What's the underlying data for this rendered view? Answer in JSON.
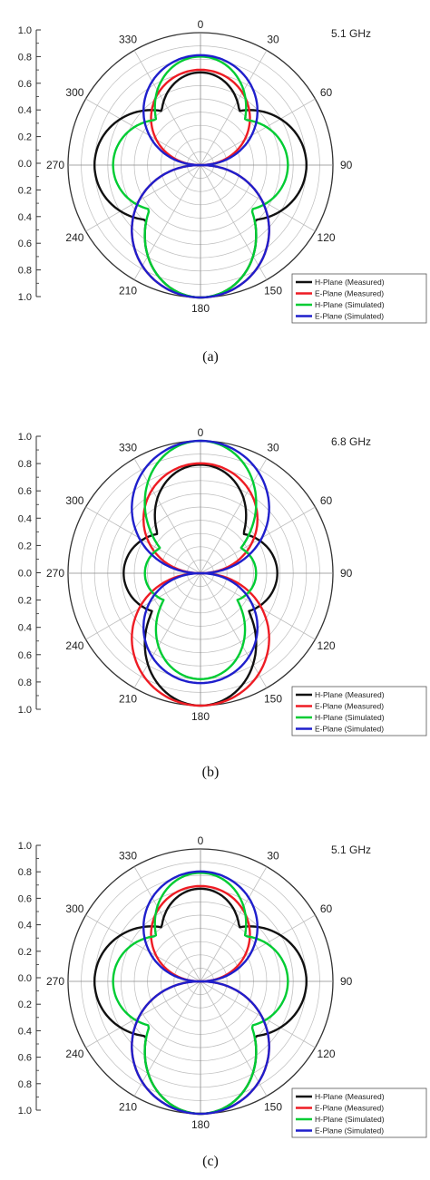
{
  "chart_data": [
    {
      "type": "polar",
      "panel": "(a)",
      "frequency_label": "5.1 GHz",
      "radial_ticks": [
        "1.0",
        "0.8",
        "0.6",
        "0.4",
        "0.2",
        "0.0",
        "0.2",
        "0.4",
        "0.6",
        "0.8",
        "1.0"
      ],
      "angle_labels": [
        "0",
        "30",
        "60",
        "90",
        "120",
        "150",
        "180",
        "210",
        "240",
        "270",
        "300",
        "330"
      ],
      "rlim": [
        0,
        1
      ],
      "grid": true,
      "legend_position": "bottom-right",
      "series": [
        {
          "name": "H-Plane (Measured)",
          "color": "#111111",
          "pattern": "h",
          "front": 0.7,
          "back": 1.0,
          "side": 0.8
        },
        {
          "name": "E-Plane (Measured)",
          "color": "#ee1c24",
          "pattern": "e",
          "front": 0.72,
          "back": 1.0
        },
        {
          "name": "H-Plane (Simulated)",
          "color": "#00cc33",
          "pattern": "h",
          "front": 0.82,
          "back": 1.0,
          "side": 0.66
        },
        {
          "name": "E-Plane (Simulated)",
          "color": "#1f1fcc",
          "pattern": "e",
          "front": 0.83,
          "back": 1.0
        }
      ]
    },
    {
      "type": "polar",
      "panel": "(b)",
      "frequency_label": "6.8 GHz",
      "radial_ticks": [
        "1.0",
        "0.8",
        "0.6",
        "0.4",
        "0.2",
        "0.0",
        "0.2",
        "0.4",
        "0.6",
        "0.8",
        "1.0"
      ],
      "angle_labels": [
        "0",
        "30",
        "60",
        "90",
        "120",
        "150",
        "180",
        "210",
        "240",
        "270",
        "300",
        "330"
      ],
      "rlim": [
        0,
        1
      ],
      "grid": true,
      "legend_position": "bottom-right",
      "series": [
        {
          "name": "H-Plane (Measured)",
          "color": "#111111",
          "pattern": "h",
          "front": 0.82,
          "back": 1.0,
          "side": 0.58
        },
        {
          "name": "E-Plane (Measured)",
          "color": "#ee1c24",
          "pattern": "e",
          "front": 0.83,
          "back": 1.0
        },
        {
          "name": "H-Plane (Simulated)",
          "color": "#00cc33",
          "pattern": "h",
          "front": 1.0,
          "back": 0.8,
          "side": 0.42
        },
        {
          "name": "E-Plane (Simulated)",
          "color": "#1f1fcc",
          "pattern": "e",
          "front": 1.0,
          "back": 0.83
        }
      ]
    },
    {
      "type": "polar",
      "panel": "(c)",
      "frequency_label": "5.1 GHz",
      "radial_ticks": [
        "1.0",
        "0.8",
        "0.6",
        "0.4",
        "0.2",
        "0.0",
        "0.2",
        "0.4",
        "0.6",
        "0.8",
        "1.0"
      ],
      "angle_labels": [
        "0",
        "30",
        "60",
        "90",
        "120",
        "150",
        "180",
        "210",
        "240",
        "270",
        "300",
        "330"
      ],
      "rlim": [
        0,
        1
      ],
      "grid": true,
      "legend_position": "bottom-right",
      "series": [
        {
          "name": "H-Plane (Measured)",
          "color": "#111111",
          "pattern": "h",
          "front": 0.7,
          "back": 1.0,
          "side": 0.8
        },
        {
          "name": "E-Plane (Measured)",
          "color": "#ee1c24",
          "pattern": "e",
          "front": 0.72,
          "back": 1.0
        },
        {
          "name": "H-Plane (Simulated)",
          "color": "#00cc33",
          "pattern": "h",
          "front": 0.82,
          "back": 1.0,
          "side": 0.66
        },
        {
          "name": "E-Plane (Simulated)",
          "color": "#1f1fcc",
          "pattern": "e",
          "front": 0.83,
          "back": 1.0
        }
      ]
    }
  ]
}
